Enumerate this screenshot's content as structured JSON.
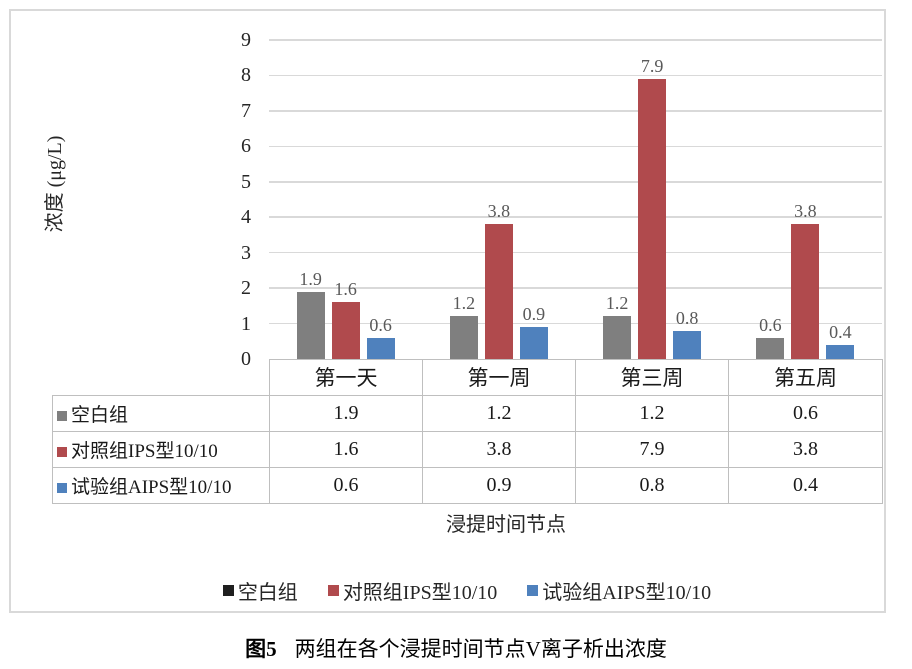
{
  "figure": {
    "caption_label": "图5",
    "caption_text": "两组在各个浸提时间节点V离子析出浓度"
  },
  "chart_data": {
    "type": "bar",
    "title": "",
    "ylabel": "浓度 (μg/L)",
    "xlabel": "浸提时间节点",
    "ylim": [
      0,
      9
    ],
    "yticks": [
      0,
      1,
      2,
      3,
      4,
      5,
      6,
      7,
      8,
      9
    ],
    "grid": true,
    "legend_position": "bottom",
    "data_table_shown": true,
    "categories": [
      "第一天",
      "第一周",
      "第三周",
      "第五周"
    ],
    "series": [
      {
        "name": "空白组",
        "color": "#7f7f7f",
        "legend_color": "#1f1f1f",
        "values": [
          1.9,
          1.2,
          1.2,
          0.6
        ]
      },
      {
        "name": "对照组IPS型10/10",
        "color": "#b04a4d",
        "legend_color": "#b04a4d",
        "values": [
          1.6,
          3.8,
          7.9,
          3.8
        ]
      },
      {
        "name": "试验组AIPS型10/10",
        "color": "#4f81bd",
        "legend_color": "#4f81bd",
        "values": [
          0.6,
          0.9,
          0.8,
          0.4
        ]
      }
    ],
    "colors": {
      "gridline": "#d9d9d9",
      "table_border": "#bfbfbf",
      "data_label": "#595959"
    }
  }
}
